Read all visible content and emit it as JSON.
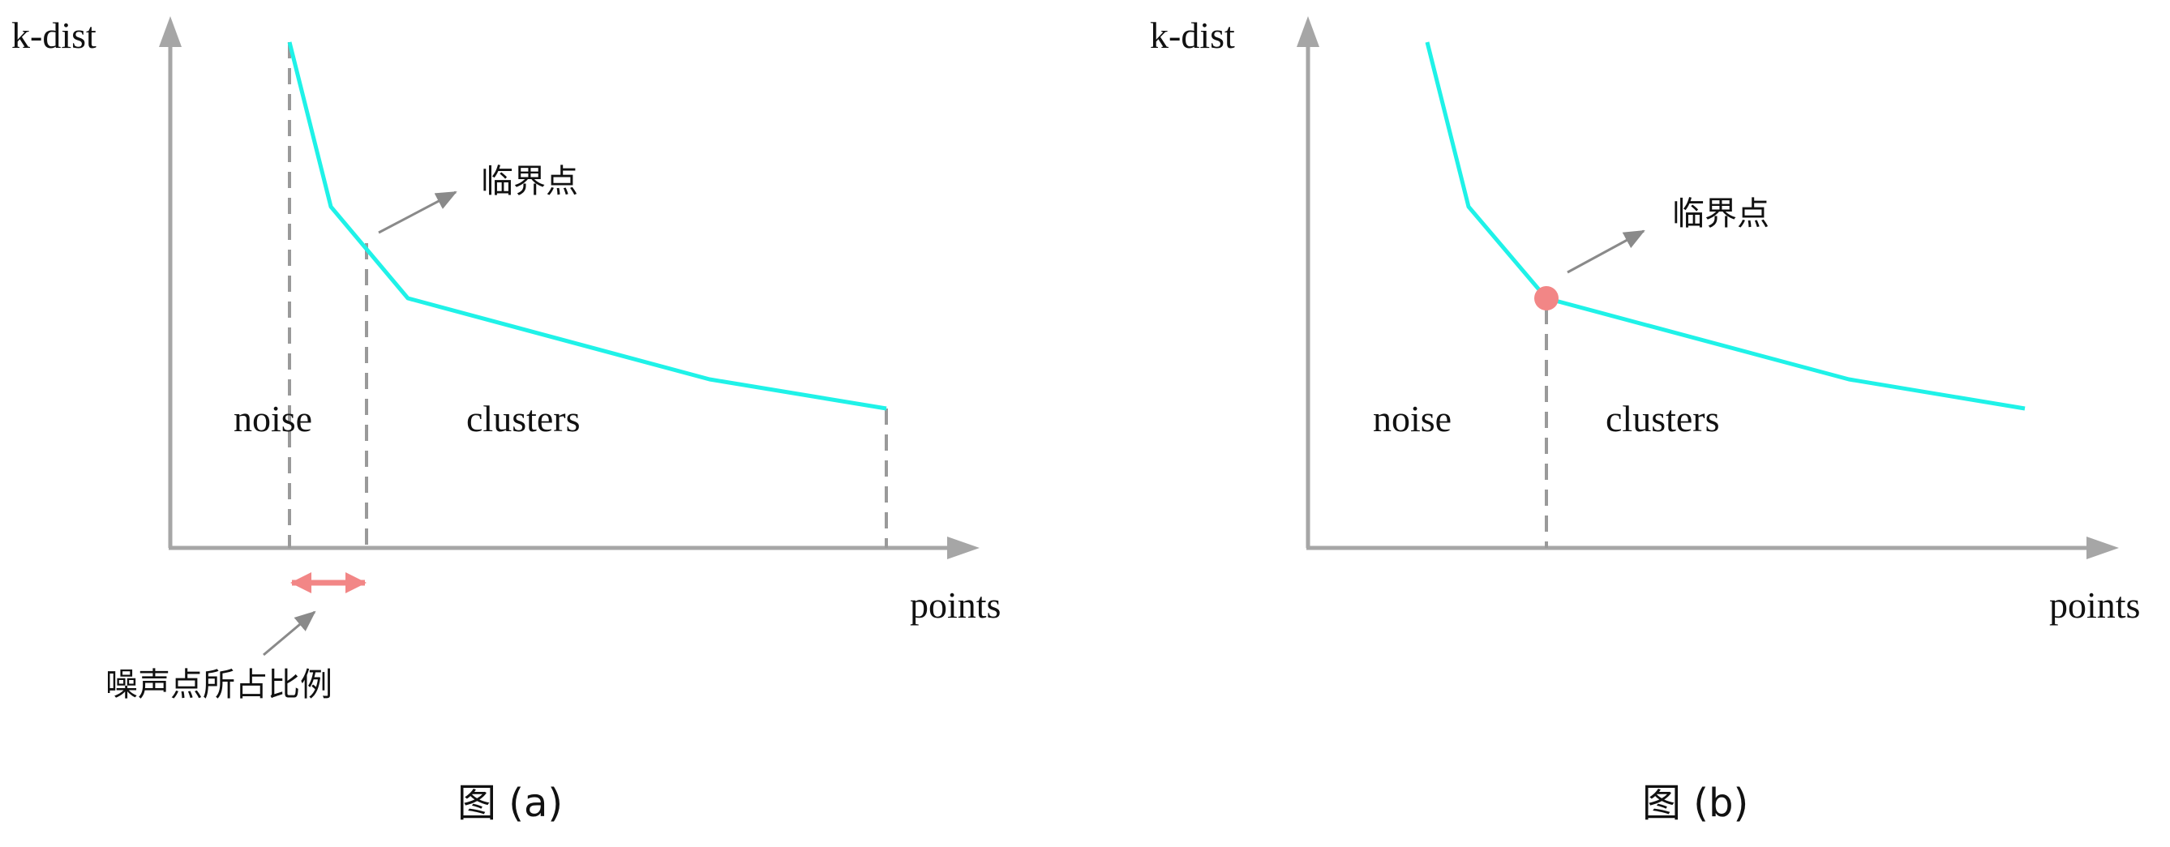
{
  "colors": {
    "axis": "#a6a6a6",
    "curve": "#1ff2e8",
    "dashed": "#9a9a9a",
    "arrow": "#8a8a8a",
    "accent": "#f28686"
  },
  "panel_a": {
    "ylabel": "k-dist",
    "xlabel": "points",
    "noise_label": "noise",
    "clusters_label": "clusters",
    "critical_point_label": "临界点",
    "noise_ratio_label": "噪声点所占比例",
    "caption": "图 (a)"
  },
  "panel_b": {
    "ylabel": "k-dist",
    "xlabel": "points",
    "noise_label": "noise",
    "clusters_label": "clusters",
    "critical_point_label": "临界点",
    "caption": "图 (b)"
  }
}
